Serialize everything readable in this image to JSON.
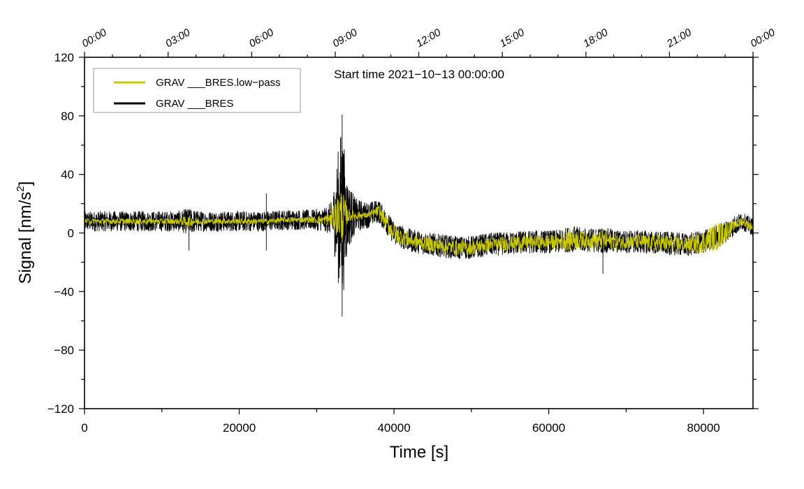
{
  "chart_data": {
    "type": "line",
    "x_label": "Time [s]",
    "y_label_prefix": "Signal [nm/s",
    "y_label_sup": "2",
    "y_label_suffix": "]",
    "annotation": "Start time 2021−10−13 00:00:00",
    "xlim": [
      0,
      86400
    ],
    "ylim": [
      -120,
      120
    ],
    "x_ticks": [
      0,
      20000,
      40000,
      60000,
      80000
    ],
    "x_tick_labels": [
      "0",
      "20000",
      "40000",
      "60000",
      "80000"
    ],
    "y_ticks": [
      -120,
      -80,
      -40,
      0,
      40,
      80,
      120
    ],
    "y_tick_labels": [
      "−120",
      "−80",
      "−40",
      "0",
      "40",
      "80",
      "120"
    ],
    "top_ticks": [
      0,
      10800,
      21600,
      32400,
      43200,
      54000,
      64800,
      75600,
      86400
    ],
    "top_tick_labels": [
      "00:00",
      "03:00",
      "06:00",
      "09:00",
      "12:00",
      "15:00",
      "18:00",
      "21:00",
      "00:00"
    ],
    "legend": [
      {
        "name": "GRAV ___BRES.low−pass",
        "color": "#c8c800"
      },
      {
        "name": "GRAV ___BRES",
        "color": "#000000"
      }
    ],
    "series": [
      {
        "name": "GRAV ___BRES",
        "color": "#000000",
        "x": [
          0,
          2000,
          4000,
          6000,
          8000,
          10000,
          12000,
          13500,
          15000,
          18000,
          21000,
          23500,
          26000,
          29000,
          31000,
          32000,
          33000,
          33300,
          33600,
          34000,
          35000,
          36500,
          38000,
          40000,
          42000,
          45000,
          48000,
          50000,
          52000,
          55000,
          58000,
          61000,
          63000,
          65000,
          67000,
          69000,
          72000,
          75000,
          78000,
          80000,
          82000,
          84000,
          85000,
          86400
        ],
        "baseline": [
          8,
          8,
          8,
          8,
          8,
          8,
          8,
          8,
          8,
          8,
          8,
          8,
          9,
          9,
          9,
          10,
          12,
          12,
          12,
          12,
          12,
          12,
          15,
          0,
          -5,
          -8,
          -10,
          -10,
          -8,
          -7,
          -6,
          -6,
          -4,
          -5,
          -5,
          -6,
          -6,
          -7,
          -8,
          -6,
          -2,
          5,
          8,
          4
        ],
        "noise_envelope": [
          7,
          7,
          7,
          7,
          7,
          7,
          7,
          9,
          7,
          7,
          7,
          7,
          7,
          7,
          8,
          12,
          55,
          65,
          45,
          25,
          12,
          9,
          8,
          8,
          8,
          8,
          8,
          8,
          8,
          8,
          8,
          8,
          9,
          8,
          9,
          8,
          8,
          8,
          8,
          8,
          8,
          7,
          6,
          6
        ],
        "spikes": [
          {
            "x": 13500,
            "y": -12
          },
          {
            "x": 23500,
            "y": 27
          },
          {
            "x": 23500,
            "y": -12
          },
          {
            "x": 33300,
            "y": 81
          },
          {
            "x": 33300,
            "y": -57
          },
          {
            "x": 67000,
            "y": -28
          }
        ]
      },
      {
        "name": "GRAV ___BRES.low−pass",
        "color": "#c8c800",
        "x": [
          0,
          2000,
          4000,
          6000,
          8000,
          10000,
          12000,
          13500,
          15000,
          18000,
          21000,
          23500,
          26000,
          29000,
          31000,
          32000,
          33000,
          33300,
          33600,
          34000,
          35000,
          36500,
          38000,
          40000,
          42000,
          45000,
          48000,
          50000,
          52000,
          55000,
          58000,
          61000,
          63000,
          65000,
          67000,
          69000,
          72000,
          75000,
          78000,
          80000,
          82000,
          84000,
          85000,
          86400
        ],
        "baseline": [
          8,
          8,
          8,
          8,
          8,
          8,
          8,
          8,
          8,
          8,
          8,
          8,
          9,
          9,
          9,
          10,
          12,
          12,
          12,
          12,
          12,
          12,
          15,
          0,
          -5,
          -8,
          -10,
          -10,
          -8,
          -7,
          -6,
          -6,
          -4,
          -5,
          -5,
          -6,
          -6,
          -7,
          -8,
          -6,
          -2,
          5,
          8,
          4
        ],
        "noise_envelope": [
          2,
          2,
          2,
          2,
          2,
          2,
          2,
          4,
          2,
          2,
          2,
          2,
          2,
          2,
          3,
          6,
          18,
          20,
          12,
          5,
          3,
          2,
          4,
          6,
          5,
          5,
          5,
          5,
          5,
          5,
          5,
          5,
          8,
          5,
          7,
          5,
          5,
          6,
          5,
          8,
          10,
          3,
          3,
          3
        ]
      }
    ]
  }
}
